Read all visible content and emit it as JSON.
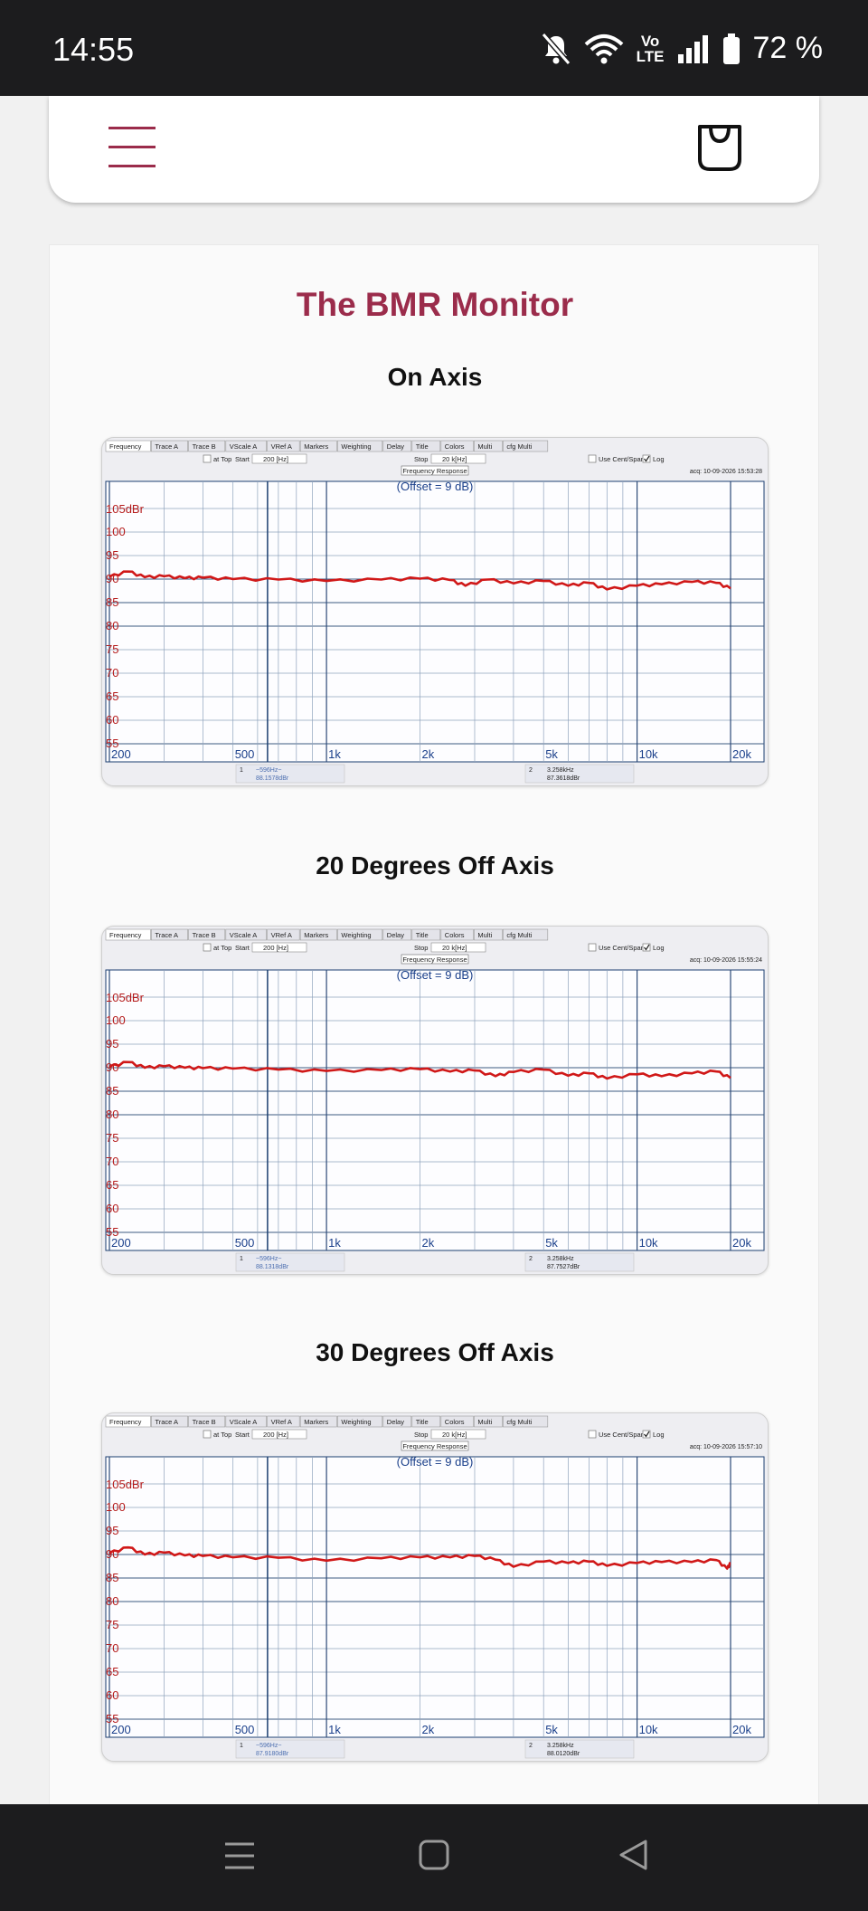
{
  "status": {
    "time": "14:55",
    "volte_top": "Vo",
    "volte_bottom": "LTE",
    "battery": "72 %"
  },
  "page": {
    "title": "The BMR Monitor"
  },
  "software": {
    "tabs": [
      "Frequency",
      "Trace A",
      "Trace B",
      "VScale A",
      "VRef A",
      "Markers",
      "Weighting",
      "Delay",
      "Title",
      "Colors",
      "Multi",
      "cfg Multi"
    ],
    "at_top_label": "at Top",
    "start_label": "Start",
    "start_value": "200 [Hz]",
    "stop_label": "Stop",
    "stop_value": "20 k[Hz]",
    "cent_span_label": "Use Cent/Span",
    "log_label": "Log",
    "panel_title": "Frequency Response",
    "offset_label": "(Offset = 9 dB)",
    "y_unit_label": "105dBr",
    "y_ticks": [
      "100",
      "95",
      "90",
      "85",
      "80",
      "75",
      "70",
      "65",
      "60",
      "55"
    ],
    "x_ticks": [
      "200",
      "500",
      "1k",
      "2k",
      "5k",
      "10k",
      "20k"
    ],
    "marker1_index": "1",
    "marker1_freq": "~596Hz~",
    "marker2_index": "2",
    "marker2_freq": "3.258kHz"
  },
  "charts": [
    {
      "heading": "On Axis",
      "acq": "acq: 10-09-2026 15:53:28",
      "marker1_value": "88.1578dBr",
      "marker2_value": "87.3618dBr",
      "line_color": "#d01818"
    },
    {
      "heading": "20 Degrees Off Axis",
      "acq": "acq: 10-09-2026 15:55:24",
      "marker1_value": "88.1318dBr",
      "marker2_value": "87.7527dBr",
      "line_color": "#d01818"
    },
    {
      "heading": "30 Degrees Off Axis",
      "acq": "acq: 10-09-2026 15:57:10",
      "marker1_value": "87.9180dBr",
      "marker2_value": "88.0120dBr",
      "line_color": "#d01818"
    }
  ],
  "chart_data": [
    {
      "type": "line",
      "title": "On Axis",
      "x_scale": "log",
      "xlim": [
        200,
        20000
      ],
      "ylim": [
        55,
        105
      ],
      "x": [
        200,
        230,
        260,
        300,
        350,
        400,
        500,
        700,
        1000,
        1500,
        2000,
        2500,
        2800,
        3300,
        4000,
        5000,
        6000,
        7000,
        8000,
        10000,
        12000,
        15000,
        18000,
        20000
      ],
      "series": [
        {
          "values": [
            90.5,
            91.6,
            90.4,
            90.6,
            90.2,
            90.3,
            90.0,
            89.9,
            89.6,
            89.9,
            90.1,
            89.8,
            88.6,
            89.9,
            89.1,
            89.6,
            88.6,
            89.2,
            87.8,
            88.6,
            88.9,
            89.4,
            89.2,
            88.0
          ]
        }
      ]
    },
    {
      "type": "line",
      "title": "20 Degrees Off Axis",
      "x_scale": "log",
      "xlim": [
        200,
        20000
      ],
      "ylim": [
        55,
        105
      ],
      "x": [
        200,
        230,
        260,
        300,
        350,
        400,
        500,
        700,
        1000,
        1500,
        2000,
        2500,
        3000,
        3500,
        4000,
        5000,
        6000,
        7000,
        8000,
        10000,
        12000,
        15000,
        18000,
        20000
      ],
      "series": [
        {
          "values": [
            90.2,
            91.2,
            90.0,
            90.3,
            90.0,
            89.9,
            89.8,
            89.6,
            89.3,
            89.5,
            89.7,
            89.2,
            89.4,
            88.2,
            89.1,
            89.6,
            88.3,
            88.8,
            87.7,
            88.6,
            88.2,
            88.8,
            89.2,
            87.8
          ]
        }
      ]
    },
    {
      "type": "line",
      "title": "30 Degrees Off Axis",
      "x_scale": "log",
      "xlim": [
        200,
        20000
      ],
      "ylim": [
        55,
        105
      ],
      "x": [
        200,
        230,
        260,
        300,
        350,
        400,
        500,
        700,
        1000,
        1500,
        2000,
        2500,
        3000,
        3500,
        4000,
        5000,
        6000,
        7000,
        8000,
        10000,
        12000,
        15000,
        18000,
        19500,
        20000
      ],
      "series": [
        {
          "values": [
            90.3,
            91.5,
            90.0,
            90.4,
            89.8,
            89.7,
            89.4,
            89.3,
            88.7,
            89.2,
            89.4,
            89.4,
            89.7,
            88.9,
            87.4,
            88.5,
            88.2,
            88.5,
            87.6,
            88.2,
            88.4,
            88.4,
            88.8,
            87.0,
            88.2
          ]
        }
      ]
    }
  ]
}
